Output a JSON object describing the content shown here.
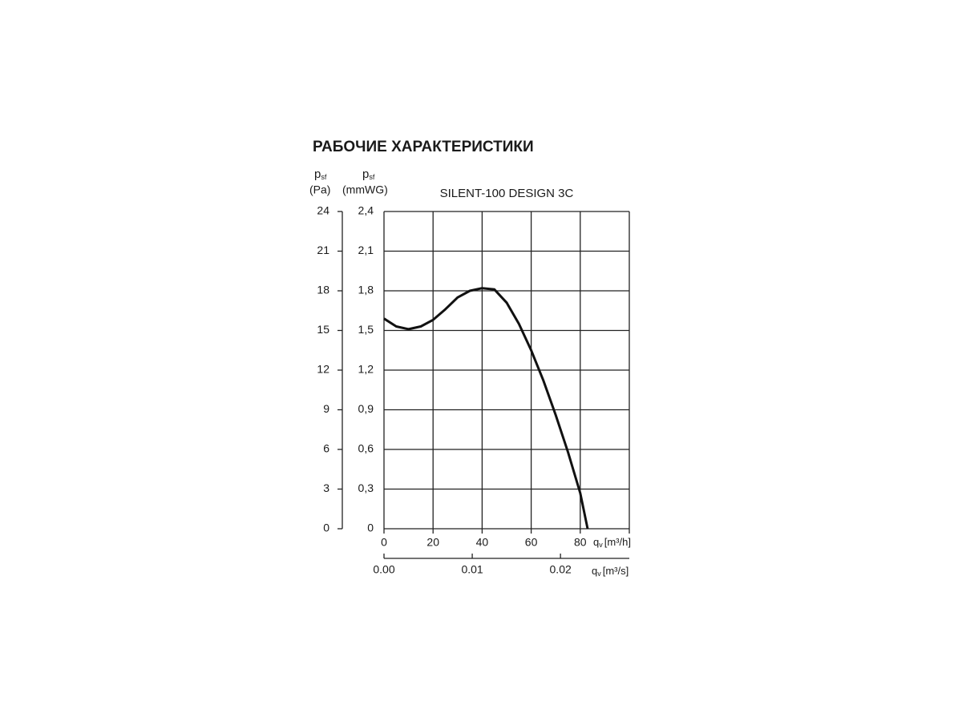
{
  "chart_data": {
    "type": "line",
    "title": "РАБОЧИЕ ХАРАКТЕРИСТИКИ",
    "subtitle": "SILENT-100 DESIGN 3C",
    "y_label": {
      "symbol": "p",
      "subscript": "sf",
      "unit": "(Pa)"
    },
    "y2_label": {
      "symbol": "p",
      "subscript": "sf",
      "unit": "(mmWG)"
    },
    "x_label": {
      "symbol": "q",
      "subscript": "v",
      "unit": "[m³/h]"
    },
    "x2_label": {
      "symbol": "q",
      "subscript": "v",
      "unit": "[m³/s]"
    },
    "xlim": [
      0,
      100
    ],
    "xticks": [
      0,
      20,
      40,
      60,
      80,
      {
        "value": 100,
        "label": null
      }
    ],
    "ylim": [
      0,
      24
    ],
    "yticks": [
      0,
      3,
      6,
      9,
      12,
      15,
      18,
      21,
      24
    ],
    "y2lim": [
      0,
      2.4
    ],
    "y2ticks": [
      0,
      {
        "value": 0.3,
        "label": "0,3"
      },
      {
        "value": 0.6,
        "label": "0,6"
      },
      {
        "value": 0.9,
        "label": "0,9"
      },
      {
        "value": 1.2,
        "label": "1,2"
      },
      {
        "value": 1.5,
        "label": "1,5"
      },
      {
        "value": 1.8,
        "label": "1,8"
      },
      {
        "value": 2.1,
        "label": "2,1"
      },
      {
        "value": 2.4,
        "label": "2,4"
      }
    ],
    "x2lim": [
      0,
      0.0278
    ],
    "x2ticks": [
      {
        "value": 0,
        "label": "0.00"
      },
      0.01,
      0.02
    ],
    "grid": true,
    "series": [
      {
        "name": "SILENT-100 DESIGN 3C",
        "color": "#111111",
        "x": [
          0,
          5,
          10,
          15,
          20,
          25,
          30,
          35,
          40,
          45,
          50,
          55,
          60,
          65,
          70,
          75,
          80,
          83
        ],
        "values": [
          15.9,
          15.3,
          15.1,
          15.3,
          15.8,
          16.6,
          17.5,
          18.0,
          18.2,
          18.1,
          17.1,
          15.5,
          13.5,
          11.2,
          8.6,
          5.8,
          2.7,
          0
        ]
      }
    ]
  }
}
